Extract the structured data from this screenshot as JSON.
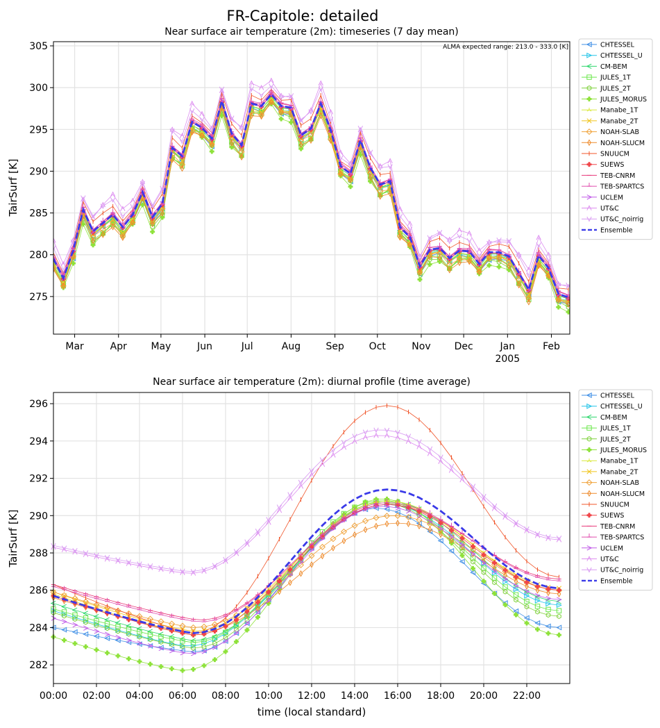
{
  "figure": {
    "title": "FR-Capitole: detailed"
  },
  "chart_data": [
    {
      "type": "line",
      "title": "Near surface air temperature (2m): timeseries (7 day mean)",
      "annotation": "ALMA expected range: 213.0 - 333.0 [K]",
      "xlabel": "",
      "ylabel": "TairSurf [K]",
      "xlim": [
        0,
        365
      ],
      "ylim": [
        270.5,
        305.5
      ],
      "yticks": [
        275,
        280,
        285,
        290,
        295,
        300,
        305
      ],
      "xticks": [
        {
          "x": 15,
          "label": "Mar"
        },
        {
          "x": 46,
          "label": "Apr"
        },
        {
          "x": 76,
          "label": "May"
        },
        {
          "x": 107,
          "label": "Jun"
        },
        {
          "x": 137,
          "label": "Jul"
        },
        {
          "x": 168,
          "label": "Aug"
        },
        {
          "x": 199,
          "label": "Sep"
        },
        {
          "x": 229,
          "label": "Oct"
        },
        {
          "x": 260,
          "label": "Nov"
        },
        {
          "x": 290,
          "label": "Dec"
        },
        {
          "x": 321,
          "label": "Jan"
        },
        {
          "x": 352,
          "label": "Feb"
        }
      ],
      "year_label": {
        "x": 321,
        "label": "2005"
      },
      "grid": true,
      "legend": "outside-right",
      "x": [
        0,
        7,
        14,
        21,
        28,
        35,
        42,
        49,
        56,
        63,
        70,
        77,
        84,
        91,
        98,
        105,
        112,
        119,
        126,
        133,
        140,
        147,
        154,
        161,
        168,
        175,
        182,
        189,
        196,
        203,
        210,
        217,
        224,
        231,
        238,
        245,
        252,
        259,
        266,
        273,
        280,
        287,
        294,
        301,
        308,
        315,
        322,
        329,
        336,
        343,
        350,
        357,
        364
      ],
      "ensemble": [
        279.5,
        277.2,
        280.5,
        285.4,
        282.8,
        283.8,
        284.8,
        283.3,
        284.8,
        287.5,
        284.5,
        286.1,
        292.8,
        291.8,
        295.9,
        295.2,
        293.9,
        298.4,
        294.5,
        293.1,
        298.1,
        297.8,
        299.2,
        297.8,
        297.6,
        294.3,
        295.1,
        298.1,
        294.9,
        290.6,
        289.7,
        293.7,
        290.4,
        288.4,
        288.8,
        283.3,
        282.1,
        278.6,
        280.6,
        280.8,
        279.6,
        280.5,
        280.4,
        278.9,
        280.3,
        280.3,
        279.8,
        277.8,
        275.8,
        279.9,
        278.4,
        275.3,
        274.9
      ],
      "series": [
        {
          "name": "CHTESSEL",
          "color": "#3f8fe6",
          "marker": "triangle-left",
          "offset": -0.7
        },
        {
          "name": "CHTESSEL_U",
          "color": "#22c4e8",
          "marker": "triangle-right",
          "offset": -0.5
        },
        {
          "name": "CM-BEM",
          "color": "#29d66a",
          "marker": "x-left",
          "offset": -0.3
        },
        {
          "name": "JULES_1T",
          "color": "#6be64b",
          "marker": "square",
          "offset": -0.9
        },
        {
          "name": "JULES_2T",
          "color": "#7fd13b",
          "marker": "hexagon",
          "offset": -1.0
        },
        {
          "name": "JULES_MORUS",
          "color": "#8ee23a",
          "marker": "plus-filled",
          "offset": -1.3
        },
        {
          "name": "Manabe_1T",
          "color": "#d9e838",
          "marker": "tri",
          "offset": -0.4
        },
        {
          "name": "Manabe_2T",
          "color": "#f0c419",
          "marker": "x",
          "offset": -0.6
        },
        {
          "name": "NOAH-SLAB",
          "color": "#f0a23a",
          "marker": "diamond",
          "offset": -0.8
        },
        {
          "name": "NOAH-SLUCM",
          "color": "#ee8a2a",
          "marker": "thin-diamond",
          "offset": -1.1
        },
        {
          "name": "SNUUCM",
          "color": "#f0552a",
          "marker": "vline",
          "offset": 0.9
        },
        {
          "name": "SUEWS",
          "color": "#f04448",
          "marker": "plus-filled",
          "offset": -0.1
        },
        {
          "name": "TEB-CNRM",
          "color": "#e8387a",
          "marker": "hline",
          "offset": 0.2
        },
        {
          "name": "TEB-SPARTCS",
          "color": "#e04cae",
          "marker": "tickup",
          "offset": 0.3
        },
        {
          "name": "UCLEM",
          "color": "#c05ae8",
          "marker": "caret-right",
          "offset": 0.0
        },
        {
          "name": "UT&C",
          "color": "#dd8ef0",
          "marker": "caret-up",
          "offset": 1.8
        },
        {
          "name": "UT&C_noirrig",
          "color": "#d99cf2",
          "marker": "caret-down",
          "offset": 1.5
        },
        {
          "name": "Ensemble",
          "color": "#3a3ae8",
          "marker": "none",
          "offset": 0.0
        }
      ]
    },
    {
      "type": "line",
      "title": "Near surface air temperature (2m): diurnal profile (time average)",
      "xlabel": "time (local standard)",
      "ylabel": "TairSurf [K]",
      "xlim": [
        0,
        24
      ],
      "ylim": [
        281.0,
        296.6
      ],
      "yticks": [
        282,
        284,
        286,
        288,
        290,
        292,
        294,
        296
      ],
      "xticks": [
        {
          "x": 0,
          "label": "00:00"
        },
        {
          "x": 2,
          "label": "02:00"
        },
        {
          "x": 4,
          "label": "04:00"
        },
        {
          "x": 6,
          "label": "06:00"
        },
        {
          "x": 8,
          "label": "08:00"
        },
        {
          "x": 10,
          "label": "10:00"
        },
        {
          "x": 12,
          "label": "12:00"
        },
        {
          "x": 14,
          "label": "14:00"
        },
        {
          "x": 16,
          "label": "16:00"
        },
        {
          "x": 18,
          "label": "18:00"
        },
        {
          "x": 20,
          "label": "20:00"
        },
        {
          "x": 22,
          "label": "22:00"
        }
      ],
      "grid": true,
      "legend": "outside-right",
      "series": [
        {
          "name": "CHTESSEL",
          "color": "#3f8fe6",
          "marker": "triangle-left",
          "min": 282.7,
          "max": 290.4,
          "tmin": 6.5,
          "tmax": 15.0,
          "start": 284.0,
          "end": 284.0
        },
        {
          "name": "CHTESSEL_U",
          "color": "#22c4e8",
          "marker": "triangle-right",
          "min": 283.0,
          "max": 290.6,
          "tmin": 6.2,
          "tmax": 15.5,
          "start": 284.9,
          "end": 285.2
        },
        {
          "name": "CM-BEM",
          "color": "#29d66a",
          "marker": "x-left",
          "min": 283.3,
          "max": 290.8,
          "tmin": 6.5,
          "tmax": 15.5,
          "start": 285.3,
          "end": 285.4
        },
        {
          "name": "JULES_1T",
          "color": "#6be64b",
          "marker": "square",
          "min": 283.2,
          "max": 290.8,
          "tmin": 6.5,
          "tmax": 15.2,
          "start": 285.0,
          "end": 284.9
        },
        {
          "name": "JULES_2T",
          "color": "#7fd13b",
          "marker": "hexagon",
          "min": 282.9,
          "max": 290.7,
          "tmin": 6.5,
          "tmax": 15.2,
          "start": 284.8,
          "end": 284.6
        },
        {
          "name": "JULES_MORUS",
          "color": "#8ee23a",
          "marker": "plus-filled",
          "min": 281.7,
          "max": 290.9,
          "tmin": 6.0,
          "tmax": 15.3,
          "start": 283.5,
          "end": 283.6
        },
        {
          "name": "Manabe_1T",
          "color": "#d9e838",
          "marker": "tri",
          "min": 283.6,
          "max": 290.8,
          "tmin": 6.5,
          "tmax": 15.5,
          "start": 285.8,
          "end": 286.0
        },
        {
          "name": "Manabe_2T",
          "color": "#f0c419",
          "marker": "x",
          "min": 283.8,
          "max": 290.7,
          "tmin": 6.5,
          "tmax": 15.5,
          "start": 285.9,
          "end": 286.1
        },
        {
          "name": "NOAH-SLAB",
          "color": "#f0a23a",
          "marker": "diamond",
          "min": 284.0,
          "max": 290.0,
          "tmin": 6.5,
          "tmax": 15.8,
          "start": 285.9,
          "end": 286.0
        },
        {
          "name": "NOAH-SLUCM",
          "color": "#ee8a2a",
          "marker": "thin-diamond",
          "min": 283.7,
          "max": 289.6,
          "tmin": 6.5,
          "tmax": 16.0,
          "start": 285.6,
          "end": 285.8
        },
        {
          "name": "SNUUCM",
          "color": "#f0552a",
          "marker": "vline",
          "min": 283.7,
          "max": 295.9,
          "tmin": 6.5,
          "tmax": 15.5,
          "start": 286.3,
          "end": 286.7
        },
        {
          "name": "SUEWS",
          "color": "#f04448",
          "marker": "plus-filled",
          "min": 283.6,
          "max": 290.6,
          "tmin": 6.5,
          "tmax": 15.5,
          "start": 285.7,
          "end": 286.0
        },
        {
          "name": "TEB-CNRM",
          "color": "#e8387a",
          "marker": "hline",
          "min": 284.4,
          "max": 290.6,
          "tmin": 6.8,
          "tmax": 15.5,
          "start": 286.3,
          "end": 286.6
        },
        {
          "name": "TEB-SPARTCS",
          "color": "#e04cae",
          "marker": "tickup",
          "min": 284.3,
          "max": 290.7,
          "tmin": 6.8,
          "tmax": 15.5,
          "start": 286.2,
          "end": 286.5
        },
        {
          "name": "UCLEM",
          "color": "#c05ae8",
          "marker": "caret-right",
          "min": 282.6,
          "max": 290.5,
          "tmin": 6.3,
          "tmax": 15.3,
          "start": 284.5,
          "end": 285.5
        },
        {
          "name": "UT&C",
          "color": "#dd8ef0",
          "marker": "caret-up",
          "min": 286.9,
          "max": 294.3,
          "tmin": 6.3,
          "tmax": 15.2,
          "start": 288.3,
          "end": 288.7
        },
        {
          "name": "UT&C_noirrig",
          "color": "#d99cf2",
          "marker": "caret-down",
          "min": 287.0,
          "max": 294.6,
          "tmin": 6.3,
          "tmax": 15.2,
          "start": 288.4,
          "end": 288.8
        },
        {
          "name": "Ensemble",
          "color": "#3a3ae8",
          "marker": "none",
          "min": 283.7,
          "max": 291.4,
          "tmin": 6.5,
          "tmax": 15.5,
          "start": 285.7,
          "end": 286.1
        }
      ]
    }
  ]
}
